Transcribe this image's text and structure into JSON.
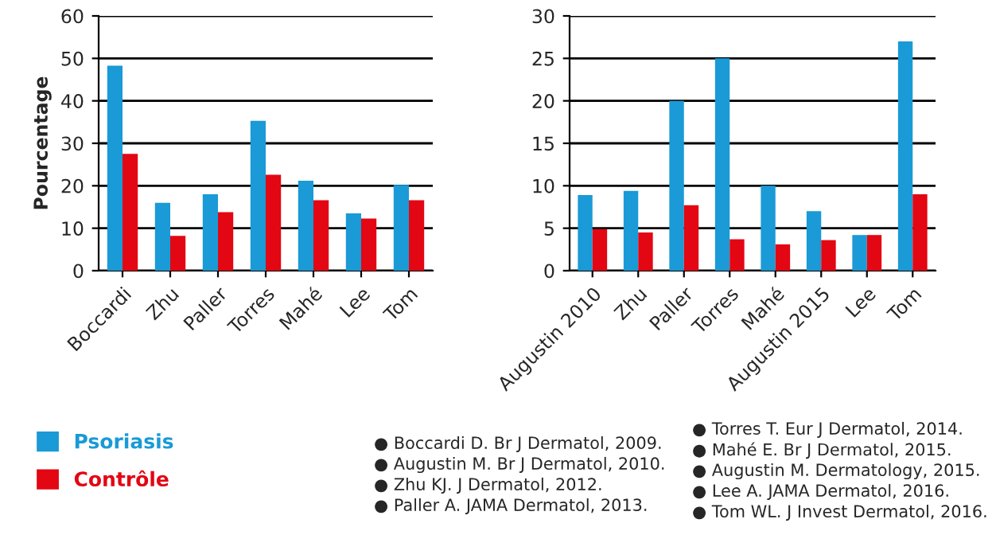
{
  "chart_data": [
    {
      "type": "bar",
      "ylabel": "Pourcentage",
      "categories": [
        "Boccardi",
        "Zhu",
        "Paller",
        "Torres",
        "Mahé",
        "Lee",
        "Tom"
      ],
      "series": [
        {
          "name": "Psoriasis",
          "color": "#1a9ad6",
          "values": [
            48.3,
            16,
            18,
            35.3,
            21.2,
            13.5,
            20.2
          ]
        },
        {
          "name": "Contrôle",
          "color": "#e30613",
          "values": [
            27.5,
            8.2,
            13.8,
            22.6,
            16.6,
            12.3,
            16.6
          ]
        }
      ],
      "ylim": [
        0,
        60
      ],
      "yticks": [
        0,
        10,
        20,
        30,
        40,
        50,
        60
      ],
      "grid": "y",
      "legend": "bottom"
    },
    {
      "type": "bar",
      "categories": [
        "Augustin 2010",
        "Zhu",
        "Paller",
        "Torres",
        "Mahé",
        "Augustin 2015",
        "Lee",
        "Tom"
      ],
      "series": [
        {
          "color": "#1a9ad6",
          "values": [
            8.9,
            9.4,
            20,
            25,
            10,
            7,
            4.2,
            27
          ]
        },
        {
          "color": "#e30613",
          "values": [
            4.9,
            4.5,
            7.7,
            3.7,
            3.1,
            3.6,
            4.2,
            9
          ]
        }
      ],
      "ylim": [
        0,
        30
      ],
      "yticks": [
        0,
        5,
        10,
        15,
        20,
        25,
        30
      ],
      "grid": "y",
      "annotations": [
        "● Boccardi D. Br J Dermatol, 2009.",
        "● Augustin M. Br J Dermatol, 2010.",
        "● Zhu KJ. J Dermatol, 2012.",
        "● Paller A. JAMA Dermatol, 2013.",
        "● Torres T. Eur J Dermatol, 2014.",
        "● Mahé E. Br J Dermatol, 2015.",
        "● Augustin M. Dermatology, 2015.",
        "● Lee A. JAMA Dermatol, 2016.",
        "● Tom WL. J Invest Dermatol, 2016."
      ]
    }
  ]
}
